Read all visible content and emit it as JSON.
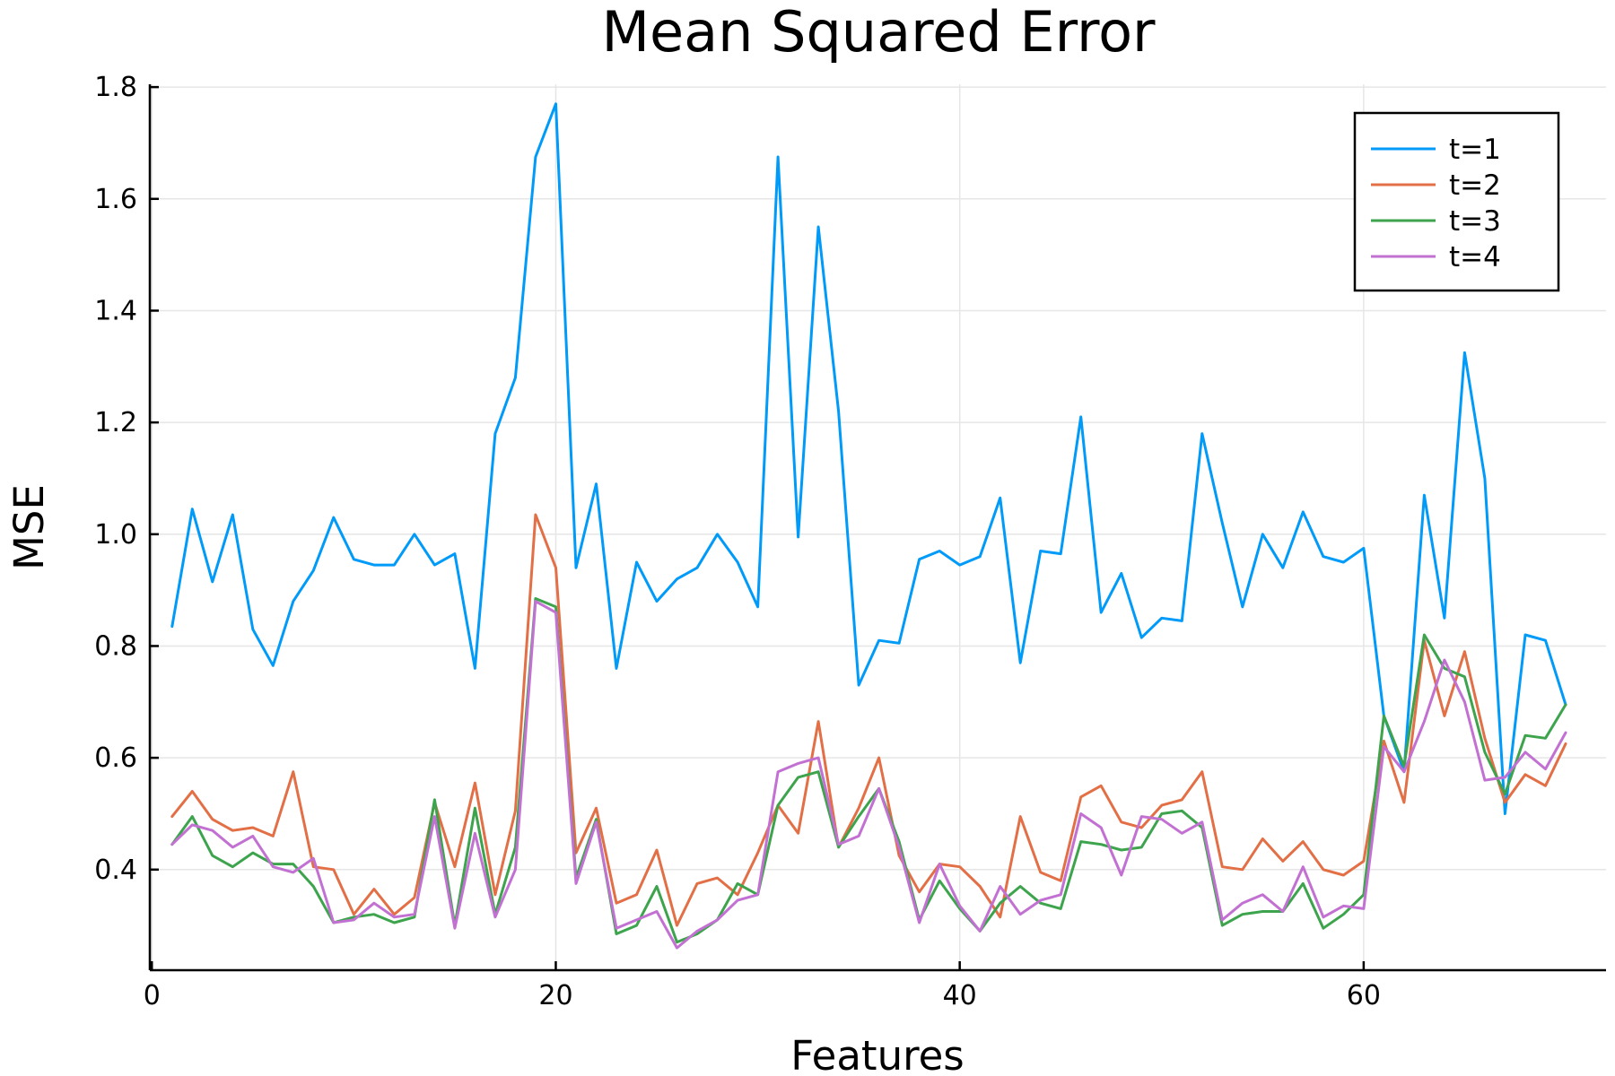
{
  "chart_data": {
    "type": "line",
    "title": "Mean Squared Error",
    "xlabel": "Features",
    "ylabel": "MSE",
    "xlim": [
      -0.1,
      72.0
    ],
    "ylim": [
      0.22,
      1.805
    ],
    "xticks": [
      0,
      20,
      40,
      60
    ],
    "xtick_labels": [
      "0",
      "20",
      "40",
      "60"
    ],
    "yticks": [
      0.4,
      0.6,
      0.8,
      1.0,
      1.2,
      1.4,
      1.6,
      1.8
    ],
    "ytick_labels": [
      "0.4",
      "0.6",
      "0.8",
      "1.0",
      "1.2",
      "1.4",
      "1.6",
      "1.8"
    ],
    "grid": true,
    "legend_position": "top-right",
    "x": [
      1,
      2,
      3,
      4,
      5,
      6,
      7,
      8,
      9,
      10,
      11,
      12,
      13,
      14,
      15,
      16,
      17,
      18,
      19,
      20,
      21,
      22,
      23,
      24,
      25,
      26,
      27,
      28,
      29,
      30,
      31,
      32,
      33,
      34,
      35,
      36,
      37,
      38,
      39,
      40,
      41,
      42,
      43,
      44,
      45,
      46,
      47,
      48,
      49,
      50,
      51,
      52,
      53,
      54,
      55,
      56,
      57,
      58,
      59,
      60,
      61,
      62,
      63,
      64,
      65,
      66,
      67,
      68,
      69,
      70
    ],
    "series": [
      {
        "name": "t=1",
        "color": "#009af9",
        "values": [
          0.835,
          1.045,
          0.915,
          1.035,
          0.83,
          0.765,
          0.88,
          0.935,
          1.03,
          0.955,
          0.945,
          0.945,
          1.0,
          0.945,
          0.965,
          0.76,
          1.18,
          1.28,
          1.675,
          1.77,
          0.94,
          1.09,
          0.76,
          0.95,
          0.88,
          0.92,
          0.94,
          1.0,
          0.95,
          0.87,
          1.675,
          0.995,
          1.55,
          1.22,
          0.73,
          0.81,
          0.805,
          0.955,
          0.97,
          0.945,
          0.96,
          1.065,
          0.77,
          0.97,
          0.965,
          1.21,
          0.86,
          0.93,
          0.815,
          0.85,
          0.845,
          1.18,
          1.02,
          0.87,
          1.0,
          0.94,
          1.04,
          0.96,
          0.95,
          0.975,
          0.675,
          0.575,
          1.07,
          0.85,
          1.325,
          1.1,
          0.5,
          0.82,
          0.81,
          0.695
        ]
      },
      {
        "name": "t=2",
        "color": "#e26f46",
        "values": [
          0.495,
          0.54,
          0.49,
          0.47,
          0.475,
          0.46,
          0.575,
          0.405,
          0.4,
          0.32,
          0.365,
          0.32,
          0.35,
          0.52,
          0.405,
          0.555,
          0.355,
          0.505,
          1.035,
          0.94,
          0.43,
          0.51,
          0.34,
          0.355,
          0.435,
          0.3,
          0.375,
          0.385,
          0.355,
          0.43,
          0.515,
          0.465,
          0.665,
          0.44,
          0.51,
          0.6,
          0.425,
          0.36,
          0.41,
          0.405,
          0.37,
          0.315,
          0.495,
          0.395,
          0.38,
          0.53,
          0.55,
          0.485,
          0.475,
          0.515,
          0.525,
          0.575,
          0.405,
          0.4,
          0.455,
          0.415,
          0.45,
          0.4,
          0.39,
          0.415,
          0.63,
          0.52,
          0.81,
          0.675,
          0.79,
          0.635,
          0.52,
          0.57,
          0.55,
          0.625
        ]
      },
      {
        "name": "t=3",
        "color": "#3da44d",
        "values": [
          0.445,
          0.495,
          0.425,
          0.405,
          0.43,
          0.41,
          0.41,
          0.37,
          0.305,
          0.315,
          0.32,
          0.305,
          0.315,
          0.525,
          0.3,
          0.51,
          0.32,
          0.44,
          0.885,
          0.87,
          0.385,
          0.49,
          0.285,
          0.3,
          0.37,
          0.27,
          0.285,
          0.31,
          0.375,
          0.355,
          0.515,
          0.565,
          0.575,
          0.44,
          0.495,
          0.545,
          0.45,
          0.31,
          0.38,
          0.33,
          0.29,
          0.34,
          0.37,
          0.34,
          0.33,
          0.45,
          0.445,
          0.435,
          0.44,
          0.5,
          0.505,
          0.475,
          0.3,
          0.32,
          0.325,
          0.325,
          0.375,
          0.295,
          0.32,
          0.355,
          0.675,
          0.585,
          0.82,
          0.76,
          0.745,
          0.61,
          0.535,
          0.64,
          0.635,
          0.695
        ]
      },
      {
        "name": "t=4",
        "color": "#c271d2",
        "values": [
          0.445,
          0.48,
          0.47,
          0.44,
          0.46,
          0.405,
          0.395,
          0.42,
          0.305,
          0.31,
          0.34,
          0.315,
          0.32,
          0.495,
          0.295,
          0.465,
          0.315,
          0.4,
          0.88,
          0.86,
          0.375,
          0.485,
          0.295,
          0.31,
          0.325,
          0.26,
          0.29,
          0.31,
          0.345,
          0.355,
          0.575,
          0.59,
          0.6,
          0.445,
          0.46,
          0.545,
          0.44,
          0.305,
          0.41,
          0.335,
          0.29,
          0.37,
          0.32,
          0.345,
          0.355,
          0.5,
          0.475,
          0.39,
          0.495,
          0.49,
          0.465,
          0.485,
          0.31,
          0.34,
          0.355,
          0.325,
          0.405,
          0.315,
          0.335,
          0.33,
          0.62,
          0.575,
          0.665,
          0.775,
          0.7,
          0.56,
          0.565,
          0.61,
          0.58,
          0.645
        ]
      }
    ]
  }
}
